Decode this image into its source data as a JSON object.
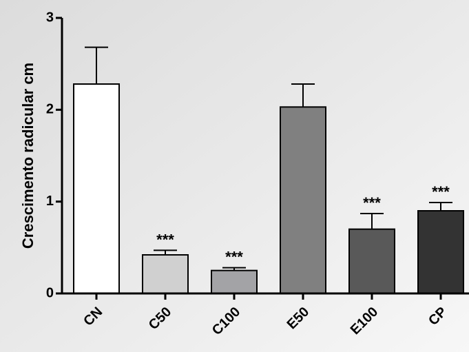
{
  "chart_data": {
    "type": "bar",
    "y_label": "Crescimento radicular cm",
    "categories": [
      "CN",
      "C50",
      "C100",
      "E50",
      "E100",
      "CP"
    ],
    "values": [
      2.28,
      0.42,
      0.25,
      2.03,
      0.7,
      0.9
    ],
    "errors": [
      0.4,
      0.05,
      0.03,
      0.25,
      0.17,
      0.09
    ],
    "colors": [
      "#ffffff",
      "#d0d0d0",
      "#a3a3a6",
      "#808080",
      "#595959",
      "#333333"
    ],
    "annotations": [
      null,
      "***",
      "***",
      null,
      "***",
      "***"
    ],
    "ylim": [
      0,
      3
    ],
    "yticks": [
      0,
      1,
      2,
      3
    ]
  }
}
